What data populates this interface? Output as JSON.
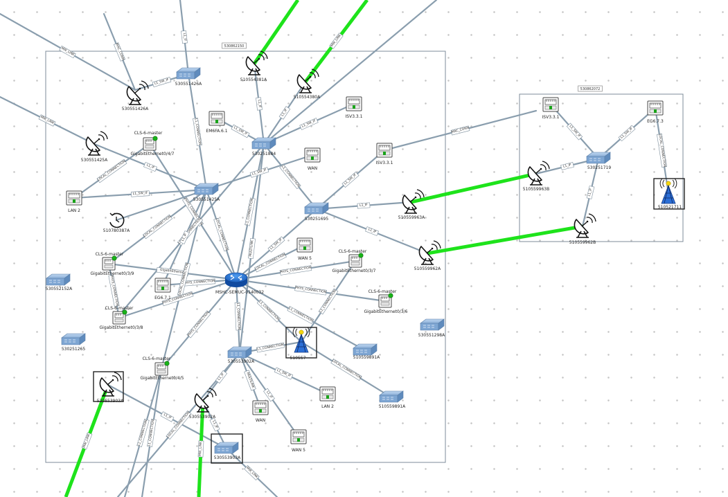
{
  "diagram": {
    "groups": [
      {
        "id": "g1",
        "tag": "530862150"
      },
      {
        "id": "g2",
        "tag": "530862072"
      }
    ],
    "nodes": [
      {
        "id": "r1",
        "type": "router",
        "label": "MSHC-SEMUC-0140032"
      },
      {
        "id": "s1",
        "type": "switch",
        "label": "530551426A"
      },
      {
        "id": "s2",
        "type": "switch",
        "label": "530251884"
      },
      {
        "id": "s3",
        "type": "switch",
        "label": "530551425A"
      },
      {
        "id": "s4",
        "type": "switch",
        "label": "530251695"
      },
      {
        "id": "s5",
        "type": "switch",
        "label": "530552152A"
      },
      {
        "id": "s6",
        "type": "switch",
        "label": "530251265"
      },
      {
        "id": "s7",
        "type": "switch",
        "label": "530553902A"
      },
      {
        "id": "s8",
        "type": "switch",
        "label": "510559891A"
      },
      {
        "id": "s9",
        "type": "switch",
        "label": "510559891A"
      },
      {
        "id": "s10",
        "type": "switch",
        "label": "530551298A"
      },
      {
        "id": "s11",
        "type": "switch",
        "label": "530553903A"
      },
      {
        "id": "s12",
        "type": "switch",
        "label": "530251719"
      },
      {
        "id": "d1",
        "type": "dish",
        "label": "530551426A"
      },
      {
        "id": "d2",
        "type": "dish",
        "label": "510554381A"
      },
      {
        "id": "d3",
        "type": "dish",
        "label": "510554380A"
      },
      {
        "id": "d4",
        "type": "dish",
        "label": "530551425A"
      },
      {
        "id": "d5",
        "type": "dish",
        "label": "510559963A"
      },
      {
        "id": "d6",
        "type": "dish",
        "label": "510559962A"
      },
      {
        "id": "d7",
        "type": "dish",
        "label": "530553903A"
      },
      {
        "id": "d8",
        "type": "dish",
        "label": "530553902A"
      },
      {
        "id": "d9",
        "type": "dish",
        "label": "510559963B"
      },
      {
        "id": "d10",
        "type": "dish",
        "label": "510559962B"
      },
      {
        "id": "p1",
        "type": "port",
        "label": "EM6FA.6.1"
      },
      {
        "id": "p2",
        "type": "port",
        "label": "ISV3.3.1"
      },
      {
        "id": "p3",
        "type": "port",
        "label": "WAN"
      },
      {
        "id": "p4",
        "type": "port",
        "label": "ISV3.3.1"
      },
      {
        "id": "p5",
        "type": "port",
        "label": "LAN 2"
      },
      {
        "id": "p6",
        "type": "port",
        "label": "WAN 5"
      },
      {
        "id": "p7",
        "type": "port",
        "label": "EG6.7.1"
      },
      {
        "id": "p8",
        "type": "port",
        "label": "LAN 2"
      },
      {
        "id": "p9",
        "type": "port",
        "label": "WAN"
      },
      {
        "id": "p10",
        "type": "port",
        "label": "WAN 5"
      },
      {
        "id": "p11",
        "type": "port",
        "label": "ISV3.3.1"
      },
      {
        "id": "p12",
        "type": "port",
        "label": "EG6.7.3"
      },
      {
        "id": "c1",
        "type": "port-master",
        "label": "GigabitEthernet0/4/7",
        "sublabel": "CLS-6-master"
      },
      {
        "id": "c2",
        "type": "port-master",
        "label": "GigabitEthernet0/3/9",
        "sublabel": "CLS-6-master"
      },
      {
        "id": "c3",
        "type": "port-master",
        "label": "GigabitEthernet0/3/8",
        "sublabel": "CLS-6-master"
      },
      {
        "id": "c4",
        "type": "port-master",
        "label": "GigabitEthernet0/3/7",
        "sublabel": "CLS-6-master"
      },
      {
        "id": "c5",
        "type": "port-master",
        "label": "GigabitEthernet0/3/6",
        "sublabel": "CLS-6-master"
      },
      {
        "id": "c6",
        "type": "port-master",
        "label": "GigabitEthernet0/4/5",
        "sublabel": "CLS-6-master"
      },
      {
        "id": "t1",
        "type": "tower",
        "label": "510557"
      },
      {
        "id": "t2",
        "type": "tower",
        "label": "510521711"
      },
      {
        "id": "k1",
        "type": "clock",
        "label": "510780387A"
      }
    ],
    "links": [
      {
        "id": "L1",
        "kind": "gray",
        "label": "MW_LINK"
      },
      {
        "id": "L2",
        "kind": "gray",
        "label": "L1_SW_IF"
      },
      {
        "id": "L3",
        "kind": "gray",
        "label": "L1_IF"
      },
      {
        "id": "L4",
        "kind": "gray",
        "label": "MW_LINK"
      },
      {
        "id": "L5",
        "kind": "gray",
        "label": ""
      },
      {
        "id": "L6",
        "kind": "gray",
        "label": "MAC_CONN"
      },
      {
        "id": "L7",
        "kind": "gray",
        "label": "L1_IF"
      },
      {
        "id": "L8",
        "kind": "gray",
        "label": "L1_IF"
      },
      {
        "id": "L9",
        "kind": "gray",
        "label": "L1_SW_IF"
      },
      {
        "id": "L10",
        "kind": "gray",
        "label": "L1_SW_IF"
      },
      {
        "id": "L11",
        "kind": "gray",
        "label": "L1_CONNECTION"
      },
      {
        "id": "L12",
        "kind": "gray",
        "label": "L1_SW_IF"
      },
      {
        "id": "L13",
        "kind": "gray",
        "label": "L1_IF"
      },
      {
        "id": "L14",
        "kind": "gray",
        "label": "LOCAL_CONNECTION"
      },
      {
        "id": "L15",
        "kind": "gray",
        "label": "L1_SW_IF"
      },
      {
        "id": "L16",
        "kind": "gray",
        "label": "MAC_CONN"
      },
      {
        "id": "L17",
        "kind": "gray",
        "label": "L1_SW_IF"
      },
      {
        "id": "L18",
        "kind": "gray",
        "label": "L1_IF"
      },
      {
        "id": "L19",
        "kind": "gray",
        "label": "L1_IF"
      },
      {
        "id": "L20",
        "kind": "gray",
        "label": "PHYS_CONNECTION"
      },
      {
        "id": "L21",
        "kind": "gray",
        "label": "L1_CONNECTION"
      },
      {
        "id": "L22",
        "kind": "gray",
        "label": "LOCAL_CONNECTION"
      },
      {
        "id": "L23",
        "kind": "gray",
        "label": "L1_CONNECTION"
      },
      {
        "id": "L24",
        "kind": "gray",
        "label": "MULTILINK"
      },
      {
        "id": "L25",
        "kind": "gray",
        "label": "L1_SW_IF"
      },
      {
        "id": "L26",
        "kind": "gray",
        "label": "LOCAL_CONNECTION"
      },
      {
        "id": "L27",
        "kind": "gray",
        "label": "GigabitEthernet"
      },
      {
        "id": "L28",
        "kind": "gray",
        "label": "PHYS_CONNECTION"
      },
      {
        "id": "L29",
        "kind": "gray",
        "label": "PHYS_CONNECTION"
      },
      {
        "id": "L30",
        "kind": "gray",
        "label": "PHYS_CONNECTION"
      },
      {
        "id": "L31",
        "kind": "gray",
        "label": "LOCAL_CONNECTION"
      },
      {
        "id": "L32",
        "kind": "gray",
        "label": "PHYS_CONNECTION"
      },
      {
        "id": "L33",
        "kind": "gray",
        "label": "PHYS_CONNECTION"
      },
      {
        "id": "L34",
        "kind": "gray",
        "label": "PHYS_CONNECTION"
      },
      {
        "id": "L35",
        "kind": "gray",
        "label": "L1_CONNECTION"
      },
      {
        "id": "L36",
        "kind": "gray",
        "label": "L1_CONNECTION"
      },
      {
        "id": "L37",
        "kind": "gray",
        "label": "L1_CONNECTION"
      },
      {
        "id": "L38",
        "kind": "gray",
        "label": "L1_CONNECTION"
      },
      {
        "id": "L39",
        "kind": "gray",
        "label": "LOCAL_CONNECTION"
      },
      {
        "id": "L40",
        "kind": "gray",
        "label": "LOCAL_CONNECTION"
      },
      {
        "id": "L41",
        "kind": "gray",
        "label": "L1_CONNECTION"
      },
      {
        "id": "L42",
        "kind": "gray",
        "label": "L1_IF"
      },
      {
        "id": "L43",
        "kind": "gray",
        "label": "MULTILINK"
      },
      {
        "id": "L44",
        "kind": "gray",
        "label": "L1_SW_IF"
      },
      {
        "id": "L45",
        "kind": "gray",
        "label": "L1_IF"
      },
      {
        "id": "L46",
        "kind": "gray",
        "label": "L1_IF"
      },
      {
        "id": "L47",
        "kind": "gray",
        "label": "L1_IF"
      },
      {
        "id": "L48",
        "kind": "gray",
        "label": "L1_CONNECTION"
      },
      {
        "id": "L49",
        "kind": "gray",
        "label": "L1_CONNECTION"
      },
      {
        "id": "L50",
        "kind": "gray",
        "label": "LOCAL_CONNECTION"
      },
      {
        "id": "L51",
        "kind": "gray",
        "label": "LOCAL_CONNECTION"
      },
      {
        "id": "L52",
        "kind": "gray",
        "label": "MW_LINK"
      },
      {
        "id": "L53",
        "kind": "gray",
        "label": ""
      },
      {
        "id": "L54",
        "kind": "gray",
        "label": "L1_SW_IF"
      },
      {
        "id": "L55",
        "kind": "gray",
        "label": "L1_IF"
      },
      {
        "id": "L56",
        "kind": "gray",
        "label": "L1_SW_IF"
      },
      {
        "id": "L57",
        "kind": "gray",
        "label": "L1_IF"
      },
      {
        "id": "L58",
        "kind": "gray",
        "label": "L1_IF"
      },
      {
        "id": "L59",
        "kind": "gray",
        "label": "LOCAL_CONNECTION"
      },
      {
        "id": "G1",
        "kind": "green",
        "label": ""
      },
      {
        "id": "G2",
        "kind": "green",
        "label": "MW_LINK"
      },
      {
        "id": "G3",
        "kind": "green",
        "label": ""
      },
      {
        "id": "G4",
        "kind": "green",
        "label": ""
      },
      {
        "id": "G5",
        "kind": "green",
        "label": "MW_LINK"
      },
      {
        "id": "G6",
        "kind": "green",
        "label": "MW_LINK"
      }
    ]
  }
}
